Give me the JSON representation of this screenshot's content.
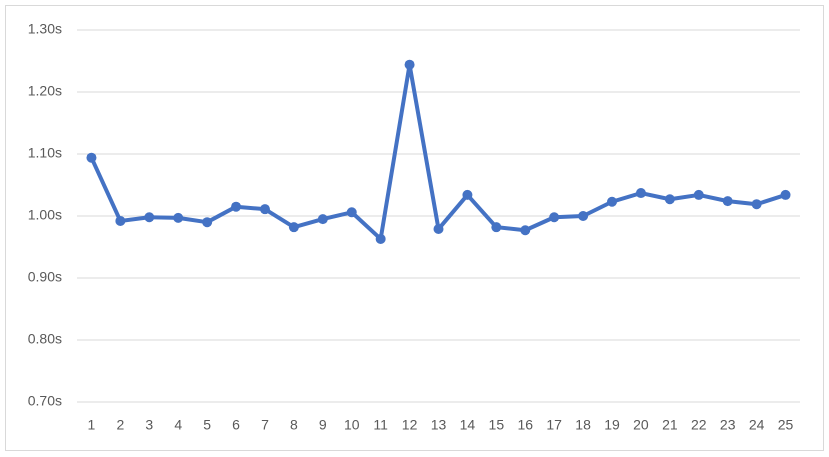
{
  "chart_data": {
    "type": "line",
    "categories": [
      "1",
      "2",
      "3",
      "4",
      "5",
      "6",
      "7",
      "8",
      "9",
      "10",
      "11",
      "12",
      "13",
      "14",
      "15",
      "16",
      "17",
      "18",
      "19",
      "20",
      "21",
      "22",
      "23",
      "24",
      "25"
    ],
    "values": [
      1.094,
      0.992,
      0.998,
      0.997,
      0.99,
      1.015,
      1.011,
      0.982,
      0.995,
      1.006,
      0.963,
      1.244,
      0.979,
      1.034,
      0.982,
      0.977,
      0.998,
      1.0,
      1.023,
      1.037,
      1.027,
      1.034,
      1.024,
      1.019,
      1.034
    ],
    "color": "#4472c4",
    "ylim": [
      0.7,
      1.3
    ],
    "yticks": [
      {
        "value": 0.7,
        "label": "0.70s"
      },
      {
        "value": 0.8,
        "label": "0.80s"
      },
      {
        "value": 0.9,
        "label": "0.90s"
      },
      {
        "value": 1.0,
        "label": "1.00s"
      },
      {
        "value": 1.1,
        "label": "1.10s"
      },
      {
        "value": 1.2,
        "label": "1.20s"
      },
      {
        "value": 1.3,
        "label": "1.30s"
      }
    ],
    "grid": true
  }
}
